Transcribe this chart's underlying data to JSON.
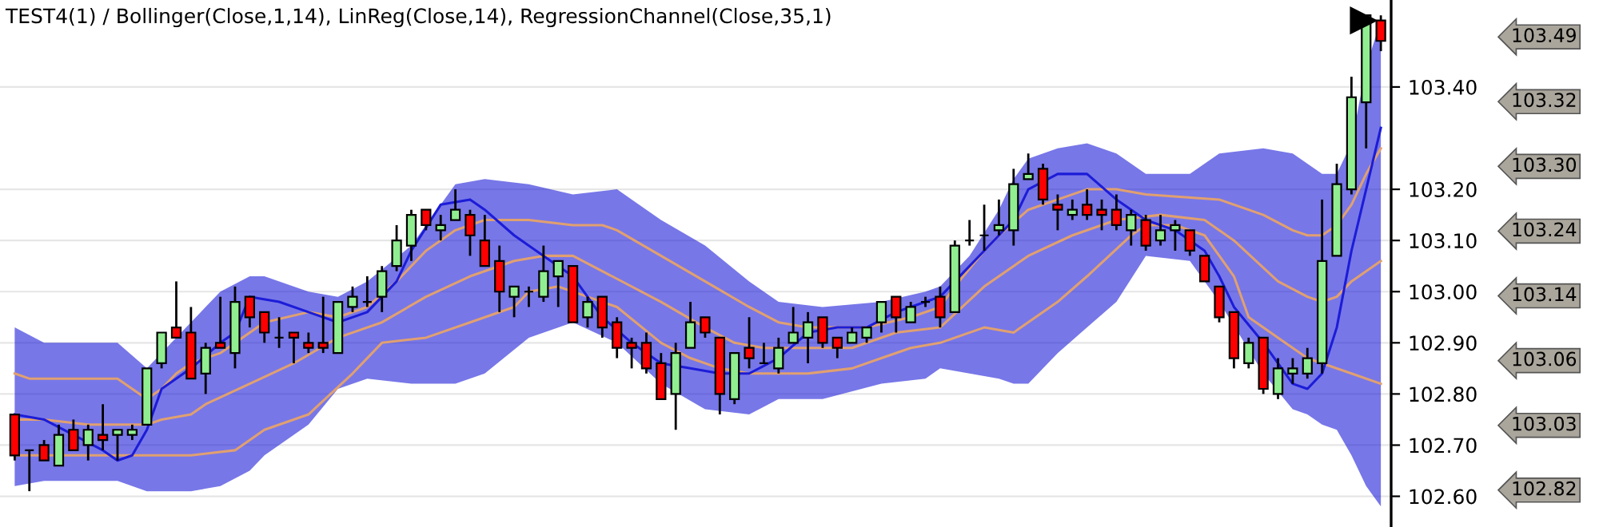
{
  "chart_data": {
    "type": "candlestick",
    "title": "TEST4(1) / Bollinger(Close,1,14), LinReg(Close,14), RegressionChannel(Close,35,1)",
    "categories": [
      null,
      null,
      null,
      null,
      null,
      null,
      null,
      null,
      null,
      null,
      null,
      null,
      null,
      null,
      null,
      null,
      null,
      null,
      null,
      null,
      null,
      null,
      null,
      null,
      null,
      null,
      null,
      null,
      null,
      null,
      null,
      null,
      null,
      null,
      null,
      null,
      null,
      null,
      null,
      null,
      null,
      null,
      null,
      null,
      null,
      null,
      null,
      null,
      null,
      null,
      null,
      null,
      null,
      null,
      null,
      null,
      null,
      null,
      null,
      null,
      null,
      null,
      null,
      null,
      null,
      null,
      null,
      null,
      null,
      null,
      null,
      null,
      null,
      null,
      null,
      null,
      null,
      null,
      null,
      null,
      null,
      null,
      null,
      null,
      null,
      null,
      null,
      null,
      null,
      null,
      null,
      null,
      null,
      null
    ],
    "ohlc": [
      [
        102.76,
        102.76,
        102.67,
        102.68
      ],
      [
        102.69,
        102.69,
        102.61,
        102.69
      ],
      [
        102.7,
        102.71,
        102.67,
        102.67
      ],
      [
        102.66,
        102.74,
        102.66,
        102.72
      ],
      [
        102.73,
        102.75,
        102.69,
        102.69
      ],
      [
        102.7,
        102.74,
        102.67,
        102.73
      ],
      [
        102.72,
        102.78,
        102.69,
        102.71
      ],
      [
        102.72,
        102.73,
        102.67,
        102.73
      ],
      [
        102.72,
        102.74,
        102.71,
        102.73
      ],
      [
        102.74,
        102.85,
        102.74,
        102.85
      ],
      [
        102.86,
        102.92,
        102.85,
        102.92
      ],
      [
        102.93,
        103.02,
        102.91,
        102.91
      ],
      [
        102.92,
        102.97,
        102.83,
        102.83
      ],
      [
        102.84,
        102.9,
        102.8,
        102.89
      ],
      [
        102.9,
        102.99,
        102.89,
        102.89
      ],
      [
        102.88,
        103.01,
        102.85,
        102.98
      ],
      [
        102.99,
        102.99,
        102.93,
        102.95
      ],
      [
        102.96,
        102.96,
        102.9,
        102.92
      ],
      [
        102.91,
        102.95,
        102.89,
        102.91
      ],
      [
        102.92,
        102.92,
        102.86,
        102.91
      ],
      [
        102.9,
        102.92,
        102.88,
        102.89
      ],
      [
        102.9,
        102.99,
        102.88,
        102.89
      ],
      [
        102.88,
        102.98,
        102.88,
        102.98
      ],
      [
        102.97,
        103.01,
        102.96,
        102.99
      ],
      [
        102.98,
        103.03,
        102.97,
        102.98
      ],
      [
        102.99,
        103.05,
        102.96,
        103.04
      ],
      [
        103.05,
        103.13,
        103.04,
        103.1
      ],
      [
        103.09,
        103.16,
        103.06,
        103.15
      ],
      [
        103.16,
        103.16,
        103.12,
        103.13
      ],
      [
        103.12,
        103.15,
        103.1,
        103.13
      ],
      [
        103.14,
        103.2,
        103.14,
        103.16
      ],
      [
        103.15,
        103.16,
        103.07,
        103.11
      ],
      [
        103.1,
        103.15,
        103.05,
        103.05
      ],
      [
        103.06,
        103.09,
        102.96,
        103.0
      ],
      [
        102.99,
        103.01,
        102.95,
        103.01
      ],
      [
        103.0,
        103.01,
        102.97,
        103.0
      ],
      [
        102.99,
        103.09,
        102.98,
        103.04
      ],
      [
        103.03,
        103.06,
        102.97,
        103.06
      ],
      [
        103.05,
        103.05,
        102.94,
        102.94
      ],
      [
        102.95,
        102.99,
        102.93,
        102.98
      ],
      [
        102.99,
        102.99,
        102.91,
        102.93
      ],
      [
        102.94,
        102.95,
        102.87,
        102.89
      ],
      [
        102.9,
        102.91,
        102.85,
        102.89
      ],
      [
        102.9,
        102.92,
        102.84,
        102.85
      ],
      [
        102.86,
        102.88,
        102.79,
        102.79
      ],
      [
        102.8,
        102.9,
        102.73,
        102.88
      ],
      [
        102.89,
        102.98,
        102.89,
        102.94
      ],
      [
        102.95,
        102.95,
        102.91,
        102.92
      ],
      [
        102.91,
        102.91,
        102.76,
        102.8
      ],
      [
        102.79,
        102.88,
        102.78,
        102.88
      ],
      [
        102.89,
        102.95,
        102.85,
        102.87
      ],
      [
        102.86,
        102.9,
        102.86,
        102.86
      ],
      [
        102.85,
        102.91,
        102.84,
        102.89
      ],
      [
        102.9,
        102.97,
        102.9,
        102.92
      ],
      [
        102.91,
        102.96,
        102.86,
        102.94
      ],
      [
        102.95,
        102.95,
        102.89,
        102.9
      ],
      [
        102.91,
        102.91,
        102.87,
        102.89
      ],
      [
        102.9,
        102.93,
        102.9,
        102.92
      ],
      [
        102.91,
        102.93,
        102.9,
        102.93
      ],
      [
        102.94,
        102.98,
        102.92,
        102.98
      ],
      [
        102.99,
        102.99,
        102.92,
        102.95
      ],
      [
        102.94,
        102.98,
        102.94,
        102.97
      ],
      [
        102.98,
        102.99,
        102.97,
        102.98
      ],
      [
        102.99,
        103.01,
        102.93,
        102.95
      ],
      [
        102.96,
        103.1,
        102.96,
        103.09
      ],
      [
        103.1,
        103.14,
        103.09,
        103.1
      ],
      [
        103.11,
        103.17,
        103.08,
        103.11
      ],
      [
        103.12,
        103.18,
        103.11,
        103.13
      ],
      [
        103.12,
        103.24,
        103.09,
        103.21
      ],
      [
        103.22,
        103.27,
        103.22,
        103.23
      ],
      [
        103.24,
        103.25,
        103.17,
        103.18
      ],
      [
        103.17,
        103.19,
        103.12,
        103.16
      ],
      [
        103.15,
        103.18,
        103.14,
        103.16
      ],
      [
        103.17,
        103.2,
        103.14,
        103.15
      ],
      [
        103.16,
        103.18,
        103.12,
        103.15
      ],
      [
        103.16,
        103.19,
        103.12,
        103.13
      ],
      [
        103.12,
        103.16,
        103.09,
        103.15
      ],
      [
        103.14,
        103.15,
        103.08,
        103.09
      ],
      [
        103.1,
        103.15,
        103.09,
        103.12
      ],
      [
        103.12,
        103.14,
        103.08,
        103.13
      ],
      [
        103.12,
        103.12,
        103.07,
        103.08
      ],
      [
        103.07,
        103.07,
        103.02,
        103.02
      ],
      [
        103.01,
        103.01,
        102.94,
        102.95
      ],
      [
        102.96,
        102.96,
        102.85,
        102.87
      ],
      [
        102.86,
        102.91,
        102.85,
        102.9
      ],
      [
        102.91,
        102.91,
        102.8,
        102.81
      ],
      [
        102.8,
        102.87,
        102.79,
        102.85
      ],
      [
        102.84,
        102.87,
        102.82,
        102.85
      ],
      [
        102.84,
        102.89,
        102.83,
        102.87
      ],
      [
        102.86,
        103.18,
        102.84,
        103.06
      ],
      [
        103.07,
        103.25,
        103.07,
        103.21
      ],
      [
        103.2,
        103.42,
        103.19,
        103.38
      ],
      [
        103.37,
        103.54,
        103.28,
        103.54
      ],
      [
        103.53,
        103.54,
        103.47,
        103.49
      ]
    ],
    "colors": [
      "#ff0000",
      "#000000",
      "#ff0000",
      "#90ee90",
      "#ff0000",
      "#90ee90",
      "#ff0000",
      "#90ee90",
      "#90ee90",
      "#90ee90",
      "#90ee90",
      "#ff0000",
      "#ff0000",
      "#90ee90",
      "#ff0000",
      "#90ee90",
      "#ff0000",
      "#ff0000",
      "#000000",
      "#ff0000",
      "#ff0000",
      "#ff0000",
      "#90ee90",
      "#90ee90",
      "#000000",
      "#90ee90",
      "#90ee90",
      "#90ee90",
      "#ff0000",
      "#90ee90",
      "#90ee90",
      "#ff0000",
      "#ff0000",
      "#ff0000",
      "#90ee90",
      "#000000",
      "#90ee90",
      "#90ee90",
      "#ff0000",
      "#90ee90",
      "#ff0000",
      "#ff0000",
      "#ff0000",
      "#ff0000",
      "#ff0000",
      "#90ee90",
      "#90ee90",
      "#ff0000",
      "#ff0000",
      "#90ee90",
      "#ff0000",
      "#000000",
      "#90ee90",
      "#90ee90",
      "#90ee90",
      "#ff0000",
      "#ff0000",
      "#90ee90",
      "#90ee90",
      "#90ee90",
      "#ff0000",
      "#90ee90",
      "#000000",
      "#ff0000",
      "#90ee90",
      "#000000",
      "#000000",
      "#90ee90",
      "#90ee90",
      "#90ee90",
      "#ff0000",
      "#ff0000",
      "#90ee90",
      "#ff0000",
      "#ff0000",
      "#ff0000",
      "#90ee90",
      "#ff0000",
      "#90ee90",
      "#90ee90",
      "#ff0000",
      "#ff0000",
      "#ff0000",
      "#ff0000",
      "#90ee90",
      "#ff0000",
      "#90ee90",
      "#90ee90",
      "#90ee90",
      "#90ee90",
      "#90ee90",
      "#90ee90",
      "#90ee90",
      "#ff0000"
    ],
    "series": [
      {
        "type": "line",
        "color": "#e0a070",
        "values": [
          102.84,
          102.83,
          null,
          null,
          null,
          null,
          null,
          102.83,
          102.81,
          102.79,
          102.81,
          102.84,
          102.86,
          null,
          102.88,
          null,
          null,
          102.94,
          null,
          null,
          102.96,
          null,
          102.95,
          null,
          102.97,
          null,
          103.02,
          null,
          103.08,
          null,
          103.12,
          103.13,
          103.14,
          null,
          null,
          103.14,
          null,
          null,
          103.13,
          null,
          103.13,
          103.12,
          null,
          null,
          103.07,
          null,
          null,
          103.02,
          null,
          null,
          102.97,
          null,
          102.94,
          null,
          102.93,
          null,
          null,
          null,
          102.93,
          null,
          null,
          102.95,
          null,
          102.97,
          103.01,
          null,
          103.08,
          103.11,
          null,
          103.16,
          null,
          103.18,
          null,
          103.2,
          null,
          103.2,
          null,
          103.19,
          null,
          null,
          null,
          null,
          103.18,
          null,
          null,
          103.15,
          null,
          103.12,
          103.11,
          103.11,
          103.13,
          103.17,
          103.23,
          103.28
        ]
      },
      {
        "type": "line",
        "color": "#e0a070",
        "values": [
          102.75,
          null,
          102.75,
          null,
          null,
          102.74,
          null,
          null,
          null,
          102.74,
          102.75,
          null,
          102.76,
          102.78,
          null,
          null,
          102.82,
          null,
          null,
          102.86,
          null,
          null,
          102.91,
          null,
          null,
          102.94,
          null,
          null,
          102.99,
          null,
          null,
          103.03,
          null,
          null,
          103.06,
          null,
          103.07,
          null,
          103.07,
          null,
          103.04,
          null,
          null,
          null,
          102.98,
          null,
          null,
          102.93,
          null,
          102.9,
          null,
          102.89,
          null,
          null,
          102.89,
          null,
          null,
          102.89,
          null,
          null,
          102.92,
          null,
          null,
          102.93,
          null,
          null,
          103.01,
          null,
          null,
          103.07,
          null,
          null,
          103.11,
          null,
          null,
          103.14,
          null,
          null,
          103.15,
          null,
          null,
          103.14,
          null,
          103.1,
          null,
          null,
          103.02,
          null,
          102.99,
          102.98,
          102.99,
          103.02,
          null,
          103.06
        ]
      },
      {
        "type": "line",
        "color": "#e0a070",
        "values": [
          102.68,
          null,
          null,
          null,
          102.68,
          null,
          null,
          102.68,
          null,
          null,
          102.68,
          null,
          102.68,
          null,
          null,
          102.69,
          null,
          102.73,
          null,
          null,
          102.76,
          null,
          null,
          102.84,
          null,
          102.9,
          null,
          null,
          102.91,
          null,
          null,
          102.94,
          null,
          null,
          102.97,
          103.0,
          null,
          103.01,
          null,
          102.99,
          null,
          102.97,
          null,
          null,
          102.9,
          null,
          102.87,
          null,
          102.85,
          null,
          102.84,
          null,
          null,
          null,
          102.84,
          null,
          null,
          102.85,
          null,
          102.87,
          null,
          102.89,
          null,
          102.9,
          null,
          null,
          102.93,
          null,
          102.92,
          null,
          null,
          102.98,
          null,
          103.03,
          null,
          null,
          103.11,
          103.13,
          null,
          103.13,
          null,
          103.11,
          null,
          103.03,
          102.95,
          null,
          102.91,
          null,
          102.87,
          102.86,
          null,
          102.84,
          null,
          102.82
        ]
      },
      {
        "type": "line",
        "color": "#1c1cd8",
        "values": [
          102.76,
          null,
          102.75,
          null,
          102.72,
          null,
          102.69,
          102.67,
          102.68,
          102.73,
          102.81,
          null,
          102.85,
          null,
          102.9,
          102.92,
          102.99,
          null,
          102.98,
          null,
          102.96,
          null,
          102.94,
          null,
          102.96,
          null,
          103.02,
          103.08,
          null,
          103.17,
          null,
          103.18,
          103.16,
          null,
          103.11,
          null,
          103.07,
          null,
          103.03,
          null,
          102.95,
          null,
          102.9,
          null,
          102.86,
          null,
          102.85,
          null,
          102.84,
          null,
          102.84,
          null,
          102.87,
          null,
          102.92,
          null,
          102.93,
          null,
          102.93,
          null,
          102.96,
          null,
          102.98,
          102.99,
          103.02,
          null,
          103.08,
          null,
          103.14,
          103.2,
          null,
          103.23,
          null,
          103.23,
          null,
          103.18,
          null,
          103.14,
          null,
          103.12,
          null,
          103.08,
          103.03,
          102.97,
          null,
          102.9,
          null,
          102.82,
          102.81,
          102.84,
          102.93,
          103.08,
          103.2,
          103.32
        ],
        "lower": [
          102.62,
          null,
          102.63,
          null,
          102.63,
          null,
          null,
          102.63,
          null,
          102.61,
          null,
          null,
          102.61,
          null,
          102.62,
          null,
          102.65,
          102.68,
          null,
          null,
          102.74,
          null,
          102.81,
          null,
          102.83,
          null,
          null,
          102.82,
          null,
          null,
          102.82,
          null,
          102.84,
          null,
          null,
          102.91,
          null,
          null,
          102.94,
          null,
          null,
          102.9,
          null,
          null,
          102.82,
          null,
          null,
          102.77,
          null,
          null,
          102.76,
          null,
          102.79,
          null,
          null,
          102.79,
          null,
          null,
          null,
          102.82,
          null,
          null,
          102.83,
          102.85,
          null,
          102.84,
          null,
          102.83,
          102.82,
          102.82,
          null,
          102.88,
          null,
          102.93,
          null,
          102.98,
          null,
          103.07,
          null,
          null,
          103.06,
          null,
          102.98,
          null,
          null,
          102.84,
          null,
          102.77,
          102.76,
          102.74,
          102.73,
          102.68,
          102.62,
          102.58
        ],
        "upper": [
          102.93,
          null,
          102.9,
          null,
          102.9,
          null,
          null,
          102.9,
          null,
          102.85,
          null,
          null,
          102.94,
          null,
          103.0,
          null,
          103.03,
          103.03,
          null,
          null,
          103.0,
          null,
          102.99,
          null,
          103.02,
          null,
          null,
          103.09,
          null,
          null,
          103.21,
          null,
          103.22,
          null,
          null,
          103.21,
          null,
          null,
          103.19,
          null,
          null,
          103.2,
          null,
          null,
          103.14,
          null,
          null,
          103.09,
          null,
          null,
          103.02,
          null,
          102.98,
          null,
          null,
          102.97,
          null,
          null,
          null,
          102.98,
          null,
          null,
          103.0,
          103.01,
          null,
          103.07,
          null,
          103.16,
          103.22,
          103.26,
          null,
          103.28,
          null,
          103.29,
          null,
          103.27,
          null,
          103.23,
          null,
          null,
          103.23,
          null,
          103.27,
          null,
          null,
          103.28,
          null,
          103.27,
          103.25,
          103.23,
          103.23,
          103.29,
          103.44,
          103.53
        ]
      }
    ],
    "ylim": [
      102.54,
      103.57
    ],
    "yticks": [
      {
        "value": 102.6,
        "label": "102.60"
      },
      {
        "value": 102.7,
        "label": "102.70"
      },
      {
        "value": 102.8,
        "label": "102.80"
      },
      {
        "value": 102.9,
        "label": "102.90"
      },
      {
        "value": 103.0,
        "label": "103.00"
      },
      {
        "value": 103.1,
        "label": "103.10"
      },
      {
        "value": 103.2,
        "label": "103.20"
      },
      {
        "value": 103.4,
        "label": "103.40"
      }
    ],
    "annotations": [
      "103.49",
      "103.32",
      "103.30",
      "103.24",
      "103.14",
      "103.06",
      "103.03",
      "102.82"
    ],
    "grid": "y",
    "tick_labels": "y"
  }
}
